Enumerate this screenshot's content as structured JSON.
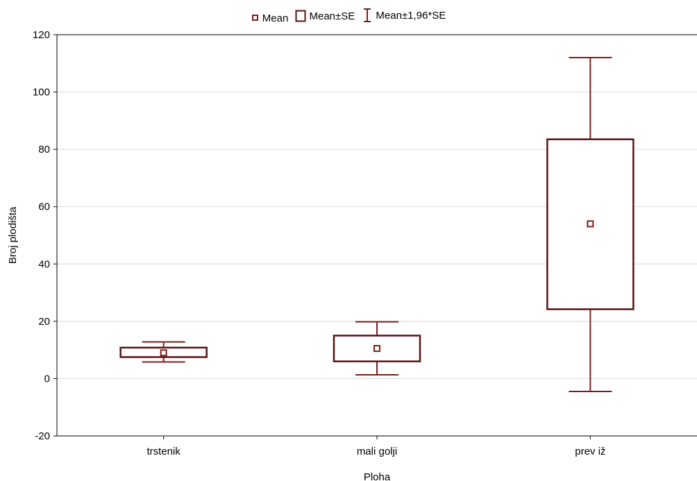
{
  "chart_data": {
    "type": "box",
    "categories": [
      "trstenik",
      "mali golji",
      "prev iž"
    ],
    "series": [
      {
        "name": "Mean",
        "values": [
          9.0,
          10.5,
          54.0
        ]
      },
      {
        "name": "Mean±SE",
        "lower": [
          7.5,
          6.0,
          24.2
        ],
        "upper": [
          10.8,
          15.0,
          83.5
        ]
      },
      {
        "name": "Mean±1,96*SE",
        "lower": [
          5.8,
          1.3,
          -4.5
        ],
        "upper": [
          12.8,
          19.8,
          112.0
        ]
      }
    ],
    "xlabel": "Ploha",
    "ylabel": "Broj plodišta",
    "ylim": [
      -20,
      120
    ],
    "yticks": [
      -20,
      0,
      20,
      40,
      60,
      80,
      100,
      120
    ],
    "grid": true,
    "legend_position": "top-center",
    "color": "#7f1a1a",
    "box_color": "#5a1010"
  },
  "legend": {
    "mean": "Mean",
    "se": "Mean±SE",
    "ci": "Mean±1,96*SE"
  }
}
